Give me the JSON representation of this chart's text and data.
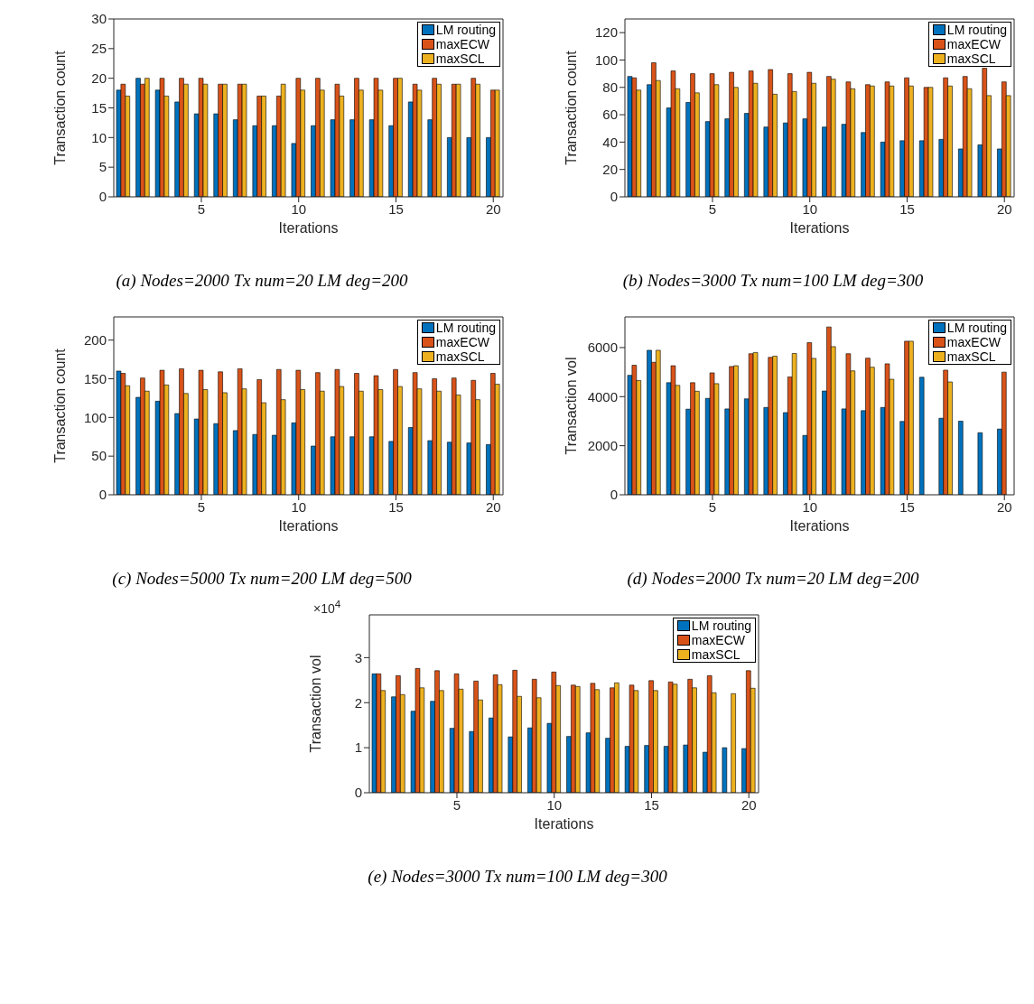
{
  "chart_data": [
    {
      "type": "bar",
      "title": "(a) Nodes=2000 Tx num=20 LM deg=200",
      "xlabel": "Iterations",
      "ylabel": "Transaction count",
      "x": [
        1,
        2,
        3,
        4,
        5,
        6,
        7,
        8,
        9,
        10,
        11,
        12,
        13,
        14,
        15,
        16,
        17,
        18,
        19,
        20
      ],
      "xlim": [
        0.5,
        20.5
      ],
      "xticks": [
        5,
        10,
        15,
        20
      ],
      "ylim": [
        0,
        30
      ],
      "yticks": [
        0,
        5,
        10,
        15,
        20,
        25,
        30
      ],
      "legend": "top right",
      "series": [
        {
          "name": "LM routing",
          "color": "#0072bd",
          "values": [
            18,
            20,
            18,
            16,
            14,
            14,
            13,
            12,
            12,
            9,
            12,
            13,
            13,
            13,
            12,
            16,
            13,
            10,
            10,
            10
          ]
        },
        {
          "name": "maxECW",
          "color": "#d95319",
          "values": [
            19,
            19,
            20,
            20,
            20,
            19,
            19,
            17,
            17,
            20,
            20,
            19,
            20,
            20,
            20,
            19,
            20,
            19,
            20,
            18
          ]
        },
        {
          "name": "maxSCL",
          "color": "#edb120",
          "values": [
            17,
            20,
            17,
            19,
            19,
            19,
            19,
            17,
            19,
            18,
            18,
            17,
            18,
            18,
            20,
            18,
            19,
            19,
            19,
            18
          ]
        }
      ]
    },
    {
      "type": "bar",
      "title": "(b) Nodes=3000 Tx num=100 LM deg=300",
      "xlabel": "Iterations",
      "ylabel": "Transaction count",
      "x": [
        1,
        2,
        3,
        4,
        5,
        6,
        7,
        8,
        9,
        10,
        11,
        12,
        13,
        14,
        15,
        16,
        17,
        18,
        19,
        20
      ],
      "xlim": [
        0.5,
        20.5
      ],
      "xticks": [
        5,
        10,
        15,
        20
      ],
      "ylim": [
        0,
        130
      ],
      "yticks": [
        0,
        20,
        40,
        60,
        80,
        100,
        120
      ],
      "legend": "top right",
      "series": [
        {
          "name": "LM routing",
          "color": "#0072bd",
          "values": [
            88,
            82,
            65,
            69,
            55,
            57,
            61,
            51,
            54,
            57,
            51,
            53,
            47,
            40,
            41,
            41,
            42,
            35,
            38,
            35
          ]
        },
        {
          "name": "maxECW",
          "color": "#d95319",
          "values": [
            87,
            98,
            92,
            90,
            90,
            91,
            92,
            93,
            90,
            91,
            88,
            84,
            82,
            84,
            87,
            80,
            87,
            88,
            94,
            84
          ]
        },
        {
          "name": "maxSCL",
          "color": "#edb120",
          "values": [
            78,
            85,
            79,
            76,
            82,
            80,
            83,
            75,
            77,
            83,
            86,
            79,
            81,
            81,
            81,
            80,
            81,
            79,
            74,
            74
          ]
        }
      ]
    },
    {
      "type": "bar",
      "title": "(c) Nodes=5000 Tx num=200 LM deg=500",
      "xlabel": "Iterations",
      "ylabel": "Transaction count",
      "x": [
        1,
        2,
        3,
        4,
        5,
        6,
        7,
        8,
        9,
        10,
        11,
        12,
        13,
        14,
        15,
        16,
        17,
        18,
        19,
        20
      ],
      "xlim": [
        0.5,
        20.5
      ],
      "xticks": [
        5,
        10,
        15,
        20
      ],
      "ylim": [
        0,
        230
      ],
      "yticks": [
        0,
        50,
        100,
        150,
        200
      ],
      "legend": "top right",
      "series": [
        {
          "name": "LM routing",
          "color": "#0072bd",
          "values": [
            160,
            126,
            121,
            105,
            98,
            92,
            83,
            78,
            77,
            93,
            63,
            75,
            75,
            75,
            69,
            87,
            70,
            68,
            67,
            65
          ]
        },
        {
          "name": "maxECW",
          "color": "#d95319",
          "values": [
            157,
            151,
            161,
            163,
            161,
            159,
            163,
            149,
            162,
            161,
            158,
            162,
            157,
            154,
            162,
            158,
            150,
            151,
            148,
            157
          ]
        },
        {
          "name": "maxSCL",
          "color": "#edb120",
          "values": [
            141,
            134,
            142,
            131,
            136,
            132,
            137,
            119,
            123,
            136,
            134,
            140,
            134,
            136,
            140,
            137,
            134,
            129,
            123,
            143
          ]
        }
      ]
    },
    {
      "type": "bar",
      "title": "(d) Nodes=2000 Tx num=20 LM deg=200",
      "xlabel": "Iterations",
      "ylabel": "Transaction vol",
      "x": [
        1,
        2,
        3,
        4,
        5,
        6,
        7,
        8,
        9,
        10,
        11,
        12,
        13,
        14,
        15,
        16,
        17,
        18,
        19,
        20
      ],
      "xlim": [
        0.5,
        20.5
      ],
      "xticks": [
        5,
        10,
        15,
        20
      ],
      "ylim": [
        0,
        7250
      ],
      "yticks": [
        0,
        2000,
        4000,
        6000
      ],
      "legend": "top right",
      "series": [
        {
          "name": "LM routing",
          "color": "#0072bd",
          "values": [
            4870,
            5890,
            4570,
            3490,
            3930,
            3500,
            3910,
            3560,
            3350,
            2420,
            4230,
            3500,
            3430,
            3560,
            2990,
            4790,
            3120,
            3000,
            2530,
            2680
          ]
        },
        {
          "name": "maxECW",
          "color": "#d95319",
          "values": [
            5280,
            5400,
            5260,
            4570,
            4970,
            5230,
            5750,
            5600,
            4800,
            6200,
            6840,
            5750,
            5570,
            5340,
            6260,
            null,
            5080,
            null,
            null,
            5000
          ]
        },
        {
          "name": "maxSCL",
          "color": "#edb120",
          "values": [
            4660,
            5890,
            4460,
            4220,
            4530,
            5260,
            5800,
            5650,
            5760,
            5560,
            6040,
            5050,
            5200,
            4710,
            6260,
            null,
            4600,
            null,
            null,
            null
          ]
        }
      ]
    },
    {
      "type": "bar",
      "title": "(e) Nodes=3000 Tx num=100 LM deg=300",
      "xlabel": "Iterations",
      "ylabel": "Transaction vol",
      "annotations": [
        "×10$^{4}$"
      ],
      "x": [
        1,
        2,
        3,
        4,
        5,
        6,
        7,
        8,
        9,
        10,
        11,
        12,
        13,
        14,
        15,
        16,
        17,
        18,
        19,
        20
      ],
      "xlim": [
        0.5,
        20.5
      ],
      "xticks": [
        5,
        10,
        15,
        20
      ],
      "ylim": [
        0,
        3.95
      ],
      "yticks": [
        0,
        1,
        2,
        3
      ],
      "legend": "top right",
      "series": [
        {
          "name": "LM routing",
          "color": "#0072bd",
          "values": [
            2.64,
            2.13,
            1.81,
            2.03,
            1.43,
            1.36,
            1.66,
            1.24,
            1.44,
            1.54,
            1.25,
            1.33,
            1.21,
            1.03,
            1.05,
            1.03,
            1.06,
            0.9,
            1.0,
            0.98
          ]
        },
        {
          "name": "maxECW",
          "color": "#d95319",
          "values": [
            2.64,
            2.6,
            2.76,
            2.71,
            2.64,
            2.48,
            2.62,
            2.72,
            2.52,
            2.68,
            2.39,
            2.43,
            2.33,
            2.39,
            2.49,
            2.46,
            2.52,
            2.6,
            null,
            2.71
          ]
        },
        {
          "name": "maxSCL",
          "color": "#edb120",
          "values": [
            2.27,
            2.18,
            2.33,
            2.27,
            2.3,
            2.06,
            2.4,
            2.14,
            2.11,
            2.38,
            2.36,
            2.29,
            2.44,
            2.27,
            2.27,
            2.41,
            2.33,
            2.22,
            2.2,
            2.32
          ]
        }
      ]
    }
  ]
}
